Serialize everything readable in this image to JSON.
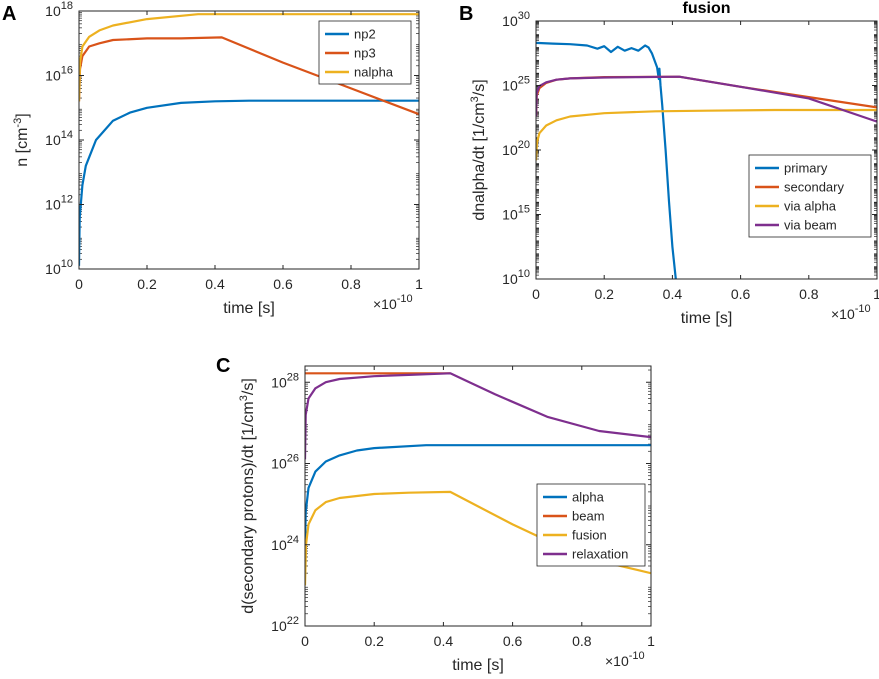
{
  "chart_data": [
    {
      "panel": "A",
      "type": "line",
      "title": "",
      "xlabel": "time [s]",
      "ylabel": "n [cm^-3]",
      "x_multiplier": "×10^-10",
      "xlim": [
        0,
        1
      ],
      "ylog_range": [
        10,
        18
      ],
      "xticks": [
        "0",
        "0.2",
        "0.4",
        "0.6",
        "0.8",
        "1"
      ],
      "ytick_exponents": [
        "10",
        "12",
        "14",
        "16",
        "18"
      ],
      "legend": "top-right",
      "series": [
        {
          "name": "np2",
          "color": "#0072BD",
          "x": [
            0,
            0.002,
            0.01,
            0.02,
            0.05,
            0.1,
            0.15,
            0.2,
            0.3,
            0.4,
            0.5,
            0.6,
            0.8,
            1.0
          ],
          "log10y": [
            10.1,
            11.6,
            12.6,
            13.2,
            14.0,
            14.6,
            14.85,
            15.0,
            15.15,
            15.2,
            15.22,
            15.22,
            15.22,
            15.22
          ]
        },
        {
          "name": "np3",
          "color": "#D95319",
          "x": [
            0,
            0.003,
            0.01,
            0.03,
            0.06,
            0.1,
            0.2,
            0.3,
            0.42,
            0.6,
            0.8,
            1.0
          ],
          "log10y": [
            15.2,
            16.2,
            16.6,
            16.9,
            17.0,
            17.1,
            17.15,
            17.15,
            17.18,
            16.4,
            15.6,
            14.8
          ]
        },
        {
          "name": "nalpha",
          "color": "#EDB120",
          "x": [
            0,
            0.003,
            0.01,
            0.03,
            0.06,
            0.1,
            0.2,
            0.35,
            0.5,
            0.7,
            1.0
          ],
          "log10y": [
            15.2,
            16.4,
            16.9,
            17.2,
            17.4,
            17.55,
            17.75,
            17.9,
            17.9,
            17.9,
            17.9
          ]
        }
      ]
    },
    {
      "panel": "B",
      "type": "line",
      "title": "fusion",
      "xlabel": "time [s]",
      "ylabel": "dnalpha/dt [1/cm^3/s]",
      "x_multiplier": "×10^-10",
      "xlim": [
        0,
        1
      ],
      "ylog_range": [
        10,
        30
      ],
      "xticks": [
        "0",
        "0.2",
        "0.4",
        "0.6",
        "0.8",
        "1"
      ],
      "ytick_exponents": [
        "10",
        "15",
        "20",
        "25",
        "30"
      ],
      "legend": "bottom-right",
      "series": [
        {
          "name": "primary",
          "color": "#0072BD",
          "x": [
            0,
            0.05,
            0.1,
            0.15,
            0.18,
            0.2,
            0.22,
            0.24,
            0.26,
            0.28,
            0.3,
            0.32,
            0.33,
            0.34,
            0.355,
            0.36,
            0.362,
            0.365,
            0.37,
            0.38,
            0.39,
            0.4,
            0.41
          ],
          "log10y": [
            28.3,
            28.25,
            28.2,
            28.1,
            27.85,
            28.05,
            27.6,
            28.0,
            27.7,
            27.9,
            27.7,
            28.1,
            27.95,
            27.5,
            26.4,
            25.5,
            26.3,
            25.0,
            23.5,
            20.0,
            16.0,
            12.5,
            10.0
          ]
        },
        {
          "name": "secondary",
          "color": "#D95319",
          "x": [
            0,
            0.002,
            0.01,
            0.03,
            0.06,
            0.1,
            0.2,
            0.42,
            0.6,
            0.8,
            1.0
          ],
          "log10y": [
            22.6,
            24.2,
            24.8,
            25.2,
            25.45,
            25.55,
            25.65,
            25.68,
            24.9,
            24.1,
            23.3
          ]
        },
        {
          "name": "via alpha",
          "color": "#EDB120",
          "x": [
            0,
            0.003,
            0.01,
            0.03,
            0.06,
            0.1,
            0.2,
            0.35,
            0.5,
            0.7,
            1.0
          ],
          "log10y": [
            19.2,
            20.6,
            21.3,
            21.9,
            22.3,
            22.6,
            22.85,
            23.0,
            23.05,
            23.1,
            23.1
          ]
        },
        {
          "name": "via beam",
          "color": "#7E2F8E",
          "x": [
            0,
            0.002,
            0.01,
            0.03,
            0.06,
            0.1,
            0.2,
            0.3,
            0.42,
            0.6,
            0.8,
            1.0
          ],
          "log10y": [
            22.6,
            24.4,
            24.95,
            25.25,
            25.45,
            25.55,
            25.62,
            25.65,
            25.68,
            24.9,
            24.0,
            22.2
          ]
        }
      ]
    },
    {
      "panel": "C",
      "type": "line",
      "title": "",
      "xlabel": "time [s]",
      "ylabel": "d(secondary protons)/dt [1/cm^3/s]",
      "x_multiplier": "×10^-10",
      "xlim": [
        0,
        1
      ],
      "ylog_range": [
        22,
        28.4
      ],
      "xticks": [
        "0",
        "0.2",
        "0.4",
        "0.6",
        "0.8",
        "1"
      ],
      "ytick_exponents": [
        "22",
        "24",
        "26",
        "28"
      ],
      "legend": "right",
      "series": [
        {
          "name": "alpha",
          "color": "#0072BD",
          "x": [
            0,
            0.002,
            0.01,
            0.03,
            0.06,
            0.1,
            0.15,
            0.2,
            0.35,
            0.5,
            0.7,
            1.0
          ],
          "log10y": [
            23.8,
            24.8,
            25.4,
            25.8,
            26.05,
            26.2,
            26.32,
            26.38,
            26.45,
            26.45,
            26.45,
            26.45
          ]
        },
        {
          "name": "beam",
          "color": "#D95319",
          "x": [
            0,
            0.2,
            0.42
          ],
          "log10y": [
            28.22,
            28.22,
            28.22
          ]
        },
        {
          "name": "fusion",
          "color": "#EDB120",
          "x": [
            0,
            0.003,
            0.01,
            0.03,
            0.06,
            0.1,
            0.2,
            0.3,
            0.42,
            0.6,
            0.8,
            1.0
          ],
          "log10y": [
            23.0,
            24.0,
            24.5,
            24.85,
            25.05,
            25.15,
            25.25,
            25.28,
            25.3,
            24.5,
            23.7,
            23.3
          ]
        },
        {
          "name": "relaxation",
          "color": "#7E2F8E",
          "x": [
            0,
            0.002,
            0.01,
            0.03,
            0.06,
            0.1,
            0.2,
            0.3,
            0.42,
            0.55,
            0.7,
            0.85,
            1.0
          ],
          "log10y": [
            26.1,
            27.2,
            27.6,
            27.85,
            28.0,
            28.08,
            28.15,
            28.18,
            28.22,
            27.7,
            27.15,
            26.8,
            26.65
          ]
        }
      ]
    }
  ]
}
